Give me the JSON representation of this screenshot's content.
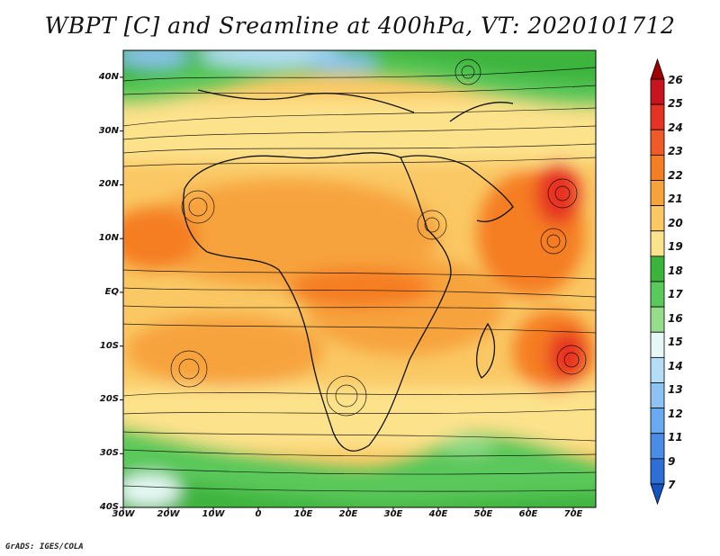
{
  "title": "WBPT [C] and Sreamline at 400hPa, VT: 2020101712",
  "credit": "GrADS: IGES/COLA",
  "map": {
    "lat_labels": [
      "40N",
      "30N",
      "20N",
      "10N",
      "EQ",
      "10S",
      "20S",
      "30S",
      "40S"
    ],
    "lat_values": [
      40,
      30,
      20,
      10,
      0,
      -10,
      -20,
      -30,
      -40
    ],
    "lon_labels": [
      "30W",
      "20W",
      "10W",
      "0",
      "10E",
      "20E",
      "30E",
      "40E",
      "50E",
      "60E",
      "70E"
    ],
    "lon_values": [
      -30,
      -20,
      -10,
      0,
      10,
      20,
      30,
      40,
      50,
      60,
      70
    ],
    "extent": {
      "lon_min": -30,
      "lon_max": 75,
      "lat_min": -40,
      "lat_max": 45
    },
    "field": "WBPT",
    "units": "C",
    "level": "400hPa"
  },
  "colorbar": {
    "labels": [
      "26",
      "25",
      "24",
      "23",
      "22",
      "21",
      "20",
      "19",
      "18",
      "17",
      "16",
      "15",
      "14",
      "13",
      "12",
      "11",
      "9",
      "7"
    ],
    "colors": [
      "#a00000",
      "#c8141e",
      "#e63223",
      "#f05a28",
      "#f57d23",
      "#f7a33c",
      "#fac864",
      "#fde28c",
      "#3cb43c",
      "#5ac85a",
      "#96dc8c",
      "#e6f8f5",
      "#b4def8",
      "#8cc3f2",
      "#6aaaf0",
      "#4b8ce6",
      "#2d6ed7",
      "#1455c3"
    ]
  }
}
